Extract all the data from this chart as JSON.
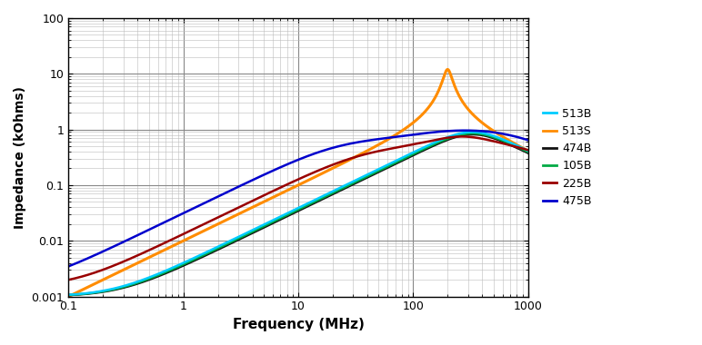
{
  "title": "",
  "xlabel": "Frequency (MHz)",
  "ylabel": "Impedance (kOhms)",
  "xlim": [
    0.1,
    1000
  ],
  "ylim": [
    0.001,
    100
  ],
  "background_color": "#ffffff",
  "grid_color": "#b0b0b0",
  "legend_colors": [
    "#00ccff",
    "#ff8c00",
    "#111111",
    "#00aa44",
    "#990000",
    "#0000cc"
  ],
  "legend_labels": [
    "513B",
    "513S",
    "474B",
    "105B",
    "225B",
    "475B"
  ],
  "series": [
    {
      "name": "513B",
      "color": "#00ccff",
      "lw": 1.8
    },
    {
      "name": "513S",
      "color": "#ff8c00",
      "lw": 2.2
    },
    {
      "name": "474B",
      "color": "#111111",
      "lw": 1.8
    },
    {
      "name": "105B",
      "color": "#00aa44",
      "lw": 1.8
    },
    {
      "name": "225B",
      "color": "#990000",
      "lw": 1.8
    },
    {
      "name": "475B",
      "color": "#0000cc",
      "lw": 1.8
    }
  ]
}
